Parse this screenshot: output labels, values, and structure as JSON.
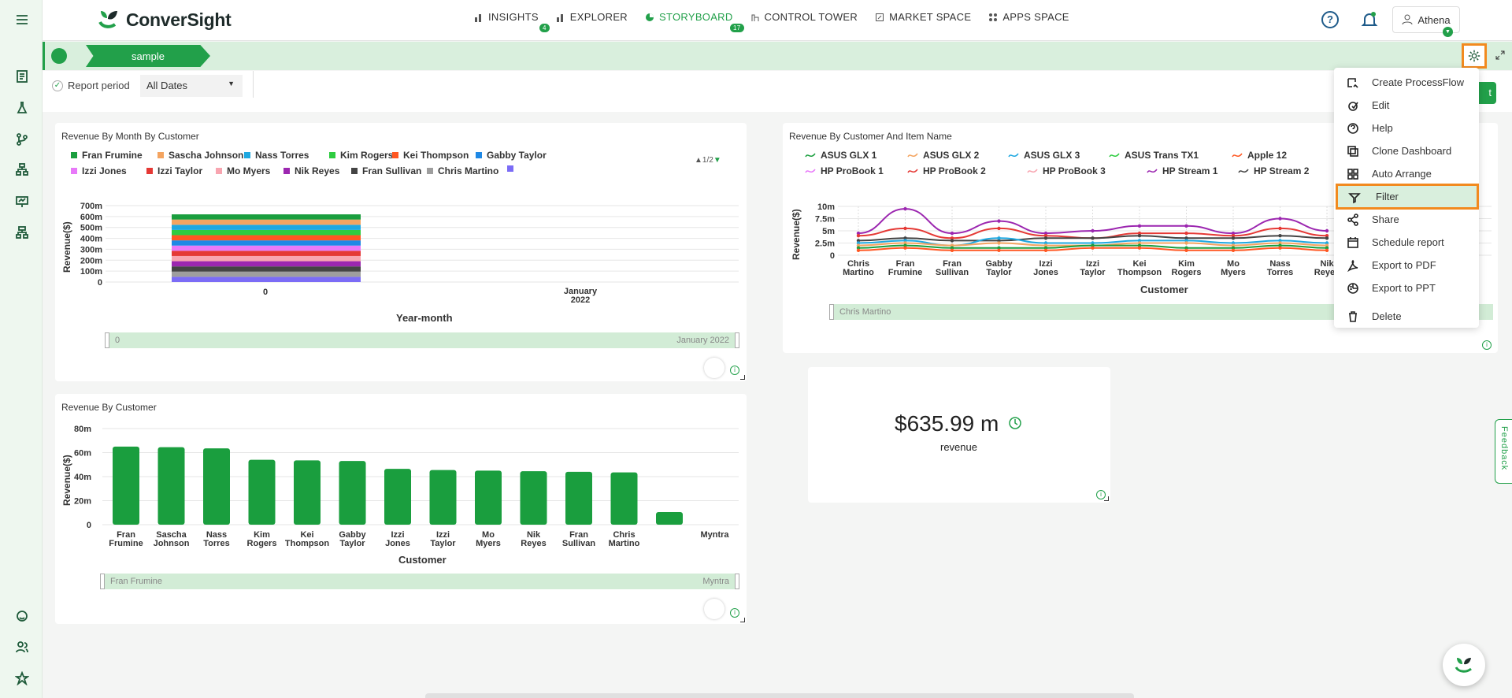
{
  "app": {
    "brand": "ConverSight"
  },
  "nav": {
    "items": [
      {
        "label": "INSIGHTS",
        "badge": "4"
      },
      {
        "label": "EXPLORER",
        "badge": ""
      },
      {
        "label": "STORYBOARD",
        "badge": "17"
      },
      {
        "label": "CONTROL TOWER",
        "badge": ""
      },
      {
        "label": "MARKET SPACE",
        "badge": ""
      },
      {
        "label": "APPS SPACE",
        "badge": ""
      }
    ],
    "help": "?",
    "user": "Athena"
  },
  "storyboard": {
    "tab": "sample",
    "accent": "#22a04a",
    "highlight": "#f28a1f"
  },
  "filter": {
    "report_period_label": "Report period",
    "report_period_value": "All Dates",
    "right_button": "t"
  },
  "menu": {
    "items": [
      {
        "label": "Create ProcessFlow",
        "icon": "processflow-icon"
      },
      {
        "label": "Edit",
        "icon": "edit-icon"
      },
      {
        "label": "Help",
        "icon": "help-icon"
      },
      {
        "label": "Clone Dashboard",
        "icon": "clone-icon"
      },
      {
        "label": "Auto Arrange",
        "icon": "arrange-icon"
      },
      {
        "label": "Filter",
        "icon": "filter-icon",
        "selected": true
      },
      {
        "label": "Share",
        "icon": "share-icon"
      },
      {
        "label": "Schedule report",
        "icon": "calendar-icon"
      },
      {
        "label": "Export to PDF",
        "icon": "pdf-icon"
      },
      {
        "label": "Export to PPT",
        "icon": "ppt-icon"
      },
      {
        "label": "Delete",
        "icon": "trash-icon"
      }
    ]
  },
  "kpi": {
    "value": "$635.99 m",
    "label": "revenue"
  },
  "feedback": "Feedback",
  "chart_data": [
    {
      "type": "bar",
      "title": "Revenue By Month By Customer",
      "legend_page": "1/2",
      "legend": [
        "Fran Frumine",
        "Sascha Johnson",
        "Nass Torres",
        "Kim Rogers",
        "Kei Thompson",
        "Gabby Taylor",
        "Izzi Jones",
        "Izzi Taylor",
        "Mo Myers",
        "Nik Reyes",
        "Fran Sullivan",
        "Chris Martino",
        ""
      ],
      "colors": [
        "#1a9e3e",
        "#f4a460",
        "#1fa8e0",
        "#2ecc40",
        "#ff5722",
        "#1e88e5",
        "#e879f9",
        "#e53935",
        "#f8a5b0",
        "#9c27b0",
        "#444444",
        "#9e9e9e",
        "#7b6cf6"
      ],
      "categories": [
        "0",
        "January 2022"
      ],
      "stacked_total": 620,
      "ylabel": "Revenue($)",
      "xlabel": "Year-month",
      "yticks": [
        "700m",
        "600m",
        "500m",
        "400m",
        "300m",
        "200m",
        "100m",
        "0"
      ],
      "scroller": [
        "0",
        "January 2022"
      ]
    },
    {
      "type": "line",
      "title": "Revenue By Customer And Item Name",
      "legend": [
        "ASUS GLX 1",
        "ASUS GLX 2",
        "ASUS GLX 3",
        "ASUS Trans TX1",
        "Apple 12",
        "HP ProBook 1",
        "HP ProBook 2",
        "HP ProBook 3",
        "HP Stream 1",
        "HP Stream 2"
      ],
      "colors": [
        "#1a9e3e",
        "#f4a460",
        "#1fa8e0",
        "#2ecc40",
        "#ff5722",
        "#e879f9",
        "#e53935",
        "#f8a5b0",
        "#9c27b0",
        "#444444"
      ],
      "categories": [
        "Chris Martino",
        "Fran Frumine",
        "Fran Sullivan",
        "Gabby Taylor",
        "Izzi Jones",
        "Izzi Taylor",
        "Kei Thompson",
        "Kim Rogers",
        "Mo Myers",
        "Nass Torres",
        "Nik Reyes"
      ],
      "ylabel": "Revenue($)",
      "xlabel": "Customer",
      "yticks": [
        "10m",
        "7.5m",
        "5m",
        "2.5m",
        "0"
      ],
      "series": [
        {
          "name": "HP Stream 1",
          "values": [
            4.5,
            9.5,
            4.5,
            7,
            4.5,
            5,
            6,
            6,
            4.5,
            7.5,
            5
          ]
        },
        {
          "name": "HP ProBook 2",
          "values": [
            4,
            5.5,
            3.5,
            5.5,
            4,
            3.5,
            4.5,
            4.5,
            4,
            5.5,
            4
          ]
        },
        {
          "name": "HP Stream 2",
          "values": [
            3,
            3.5,
            3,
            3,
            3.5,
            3.5,
            4,
            3.5,
            3.5,
            4,
            3.5
          ]
        },
        {
          "name": "ASUS GLX 3",
          "values": [
            2.5,
            3,
            2,
            3.5,
            2.5,
            2.5,
            3,
            3,
            2.5,
            3,
            2.5
          ]
        },
        {
          "name": "ASUS GLX 2",
          "values": [
            2,
            2.5,
            2,
            2.5,
            2,
            2,
            2.5,
            2.5,
            2,
            2.5,
            2
          ]
        },
        {
          "name": "ASUS GLX 1",
          "values": [
            1.5,
            2,
            1.5,
            1.5,
            1.5,
            2,
            2,
            1.5,
            1.5,
            2,
            1.5
          ]
        },
        {
          "name": "Apple 12",
          "values": [
            1,
            1.5,
            1,
            1,
            1,
            1.5,
            1.5,
            1,
            1,
            1.5,
            1
          ]
        }
      ],
      "scroller": [
        "Chris Martino"
      ]
    },
    {
      "type": "bar",
      "title": "Revenue By Customer",
      "categories": [
        "Fran Frumine",
        "Sascha Johnson",
        "Nass Torres",
        "Kim Rogers",
        "Kei Thompson",
        "Gabby Taylor",
        "Izzi Jones",
        "Izzi Taylor",
        "Mo Myers",
        "Nik Reyes",
        "Fran Sullivan",
        "Chris Martino",
        "",
        "Myntra"
      ],
      "values": [
        65,
        64.5,
        63.5,
        54,
        53.5,
        53,
        46.5,
        45.5,
        45,
        44.5,
        44,
        43.5,
        10.5,
        0
      ],
      "ylabel": "Revenue($)",
      "xlabel": "Customer",
      "yticks": [
        "80m",
        "60m",
        "40m",
        "20m",
        "0"
      ],
      "ylim": [
        0,
        80
      ],
      "color": "#1a9e3e",
      "scroller": [
        "Fran Frumine",
        "Myntra"
      ]
    }
  ]
}
